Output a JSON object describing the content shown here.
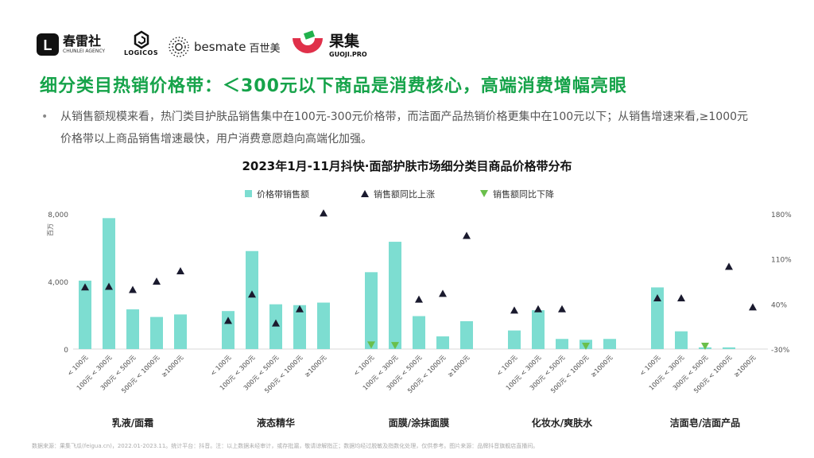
{
  "logos": {
    "chunlei_name": "春雷社",
    "chunlei_sub": "CHUNLEI AGENCY",
    "logicos_name": "LOGICOS",
    "besmate_en": "besmate",
    "besmate_cn": "百世美",
    "guoji_cn": "果集",
    "guoji_en": "GUOJI.PRO"
  },
  "headline": "细分类目热销价格带：＜300元以下商品是消费核心，高端消费增幅亮眼",
  "bullet": "从销售额规模来看，热门类目护肤品销售集中在100元-300元价格带，而洁面产品热销价格更集中在100元以下；从销售增速来看,≥1000元价格带以上商品销售增速最快，用户消费意愿趋向高端化加强。",
  "chart_title": "2023年1月-11月抖快·面部护肤市场细分类目商品价格带分布",
  "footnote": "数据来源：果集飞瓜(feigua.cn)，2022.01-2023.11。统计平台：抖音。注：以上数据未经审计，或存批漏，敬请谅解指正；数据均经过脱敏及指数化处理，仅供参考。图片来源：品牌抖音旗舰店直播间。",
  "colors": {
    "bar": "#7dddd1",
    "up": "#1a1a2e",
    "down": "#6abf4b",
    "headline": "#16a34a"
  },
  "chart_data": {
    "type": "bar",
    "title": "2023年1月-11月抖快·面部护肤市场细分类目商品价格带分布",
    "ylabel_left": "百万",
    "ylim_left": [
      0,
      8000
    ],
    "yticks_left": [
      "8,000",
      "4,000",
      "0"
    ],
    "ylim_right": [
      -30,
      180
    ],
    "yticks_right": [
      "180%",
      "110%",
      "40%",
      "-30%"
    ],
    "legend": {
      "bar": "价格带销售额",
      "up": "销售额同比上涨",
      "down": "销售额同比下降"
    },
    "legend_position": "top-center",
    "price_bands": [
      "< 100元",
      "100元 < 300元",
      "300元 < 500元",
      "500元 < 1000元",
      "≥1000元"
    ],
    "groups": [
      {
        "name": "乳液/面霜",
        "sales": [
          4050,
          7750,
          2350,
          1900,
          2050
        ],
        "growth": [
          66,
          67,
          62,
          75,
          91
        ],
        "direction": [
          "up",
          "up",
          "up",
          "up",
          "up"
        ]
      },
      {
        "name": "液态精华",
        "sales": [
          2250,
          5800,
          2650,
          2600,
          2750
        ],
        "growth": [
          14,
          55,
          10,
          32,
          181
        ],
        "direction": [
          "up",
          "up",
          "up",
          "up",
          "up"
        ]
      },
      {
        "name": "面膜/涂抹面膜",
        "sales": [
          4550,
          6350,
          1950,
          750,
          1650
        ],
        "growth": [
          -23,
          -24,
          47,
          56,
          146
        ],
        "direction": [
          "down",
          "down",
          "up",
          "up",
          "up"
        ]
      },
      {
        "name": "化妆水/爽肤水",
        "sales": [
          1100,
          2300,
          600,
          550,
          600
        ],
        "growth": [
          30,
          32,
          32,
          -25,
          null
        ],
        "direction": [
          "up",
          "up",
          "up",
          "down",
          null
        ]
      },
      {
        "name": "洁面皂/洁面产品",
        "sales": [
          3650,
          1050,
          100,
          100,
          null
        ],
        "growth": [
          49,
          49,
          -25,
          98,
          35
        ],
        "direction": [
          "up",
          "up",
          "down",
          "up",
          "up"
        ]
      }
    ]
  }
}
